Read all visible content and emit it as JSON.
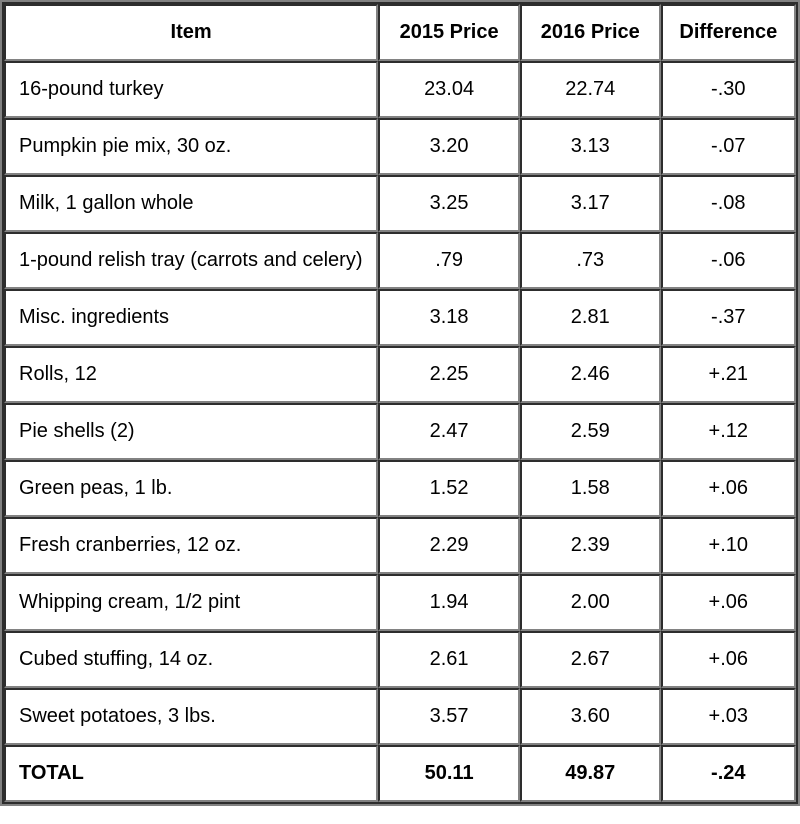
{
  "chart_data": {
    "type": "table",
    "columns": [
      "Item",
      "2015 Price",
      "2016 Price",
      "Difference"
    ],
    "rows": [
      {
        "item": "16-pound turkey",
        "price_2015": "23.04",
        "price_2016": "22.74",
        "difference": "-.30"
      },
      {
        "item": "Pumpkin pie mix, 30 oz.",
        "price_2015": "3.20",
        "price_2016": "3.13",
        "difference": "-.07"
      },
      {
        "item": "Milk, 1 gallon whole",
        "price_2015": "3.25",
        "price_2016": "3.17",
        "difference": "-.08"
      },
      {
        "item": "1-pound relish tray (carrots and celery)",
        "price_2015": ".79",
        "price_2016": ".73",
        "difference": "-.06"
      },
      {
        "item": "Misc. ingredients",
        "price_2015": "3.18",
        "price_2016": "2.81",
        "difference": "-.37"
      },
      {
        "item": "Rolls, 12",
        "price_2015": "2.25",
        "price_2016": "2.46",
        "difference": "+.21"
      },
      {
        "item": "Pie shells (2)",
        "price_2015": "2.47",
        "price_2016": "2.59",
        "difference": "+.12"
      },
      {
        "item": "Green peas, 1 lb.",
        "price_2015": "1.52",
        "price_2016": "1.58",
        "difference": "+.06"
      },
      {
        "item": "Fresh cranberries, 12 oz.",
        "price_2015": "2.29",
        "price_2016": "2.39",
        "difference": "+.10"
      },
      {
        "item": "Whipping cream, 1/2 pint",
        "price_2015": "1.94",
        "price_2016": "2.00",
        "difference": "+.06"
      },
      {
        "item": "Cubed stuffing, 14 oz.",
        "price_2015": "2.61",
        "price_2016": "2.67",
        "difference": "+.06"
      },
      {
        "item": "Sweet potatoes, 3 lbs.",
        "price_2015": "3.57",
        "price_2016": "3.60",
        "difference": "+.03"
      }
    ],
    "total": {
      "item": "TOTAL",
      "price_2015": "50.11",
      "price_2016": "49.87",
      "difference": "-.24"
    }
  },
  "colors": {
    "border_dark": "#2d2d2d",
    "border_light": "#828282",
    "background": "#ffffff",
    "text": "#000000"
  }
}
